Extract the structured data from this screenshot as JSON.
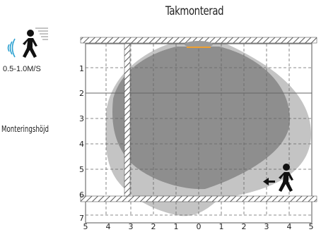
{
  "title": "Takmonterad",
  "speed_label": "0.5-1.0M/S",
  "mounting_height_label": "Monteringshöjd",
  "height_ticks": [
    "1",
    "2",
    "3",
    "4",
    "5",
    "6",
    "7"
  ],
  "distance_ticks": [
    "5",
    "4",
    "3",
    "2",
    "1",
    "0",
    "1",
    "2",
    "3",
    "4",
    "5"
  ],
  "icons": {
    "walker_top": "walking-person-icon",
    "waves": "motion-waves-icon",
    "walker_bottom": "walking-person-icon",
    "arrow": "left-arrow-icon"
  },
  "colors": {
    "outer_zone": "#c4c4c4",
    "inner_zone": "#8e8e8e",
    "sensor": "#f0a030",
    "hatch": "#555555"
  }
}
